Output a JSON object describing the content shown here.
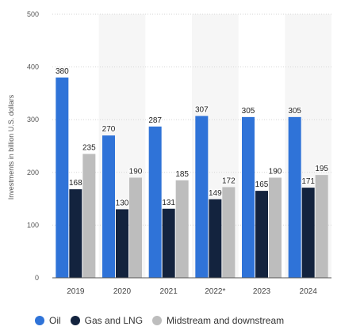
{
  "chart_data": {
    "type": "bar",
    "ylabel": "Investments in billion U.S. dollars",
    "xlabel": "",
    "ylim": [
      0,
      500
    ],
    "yticks": [
      0,
      100,
      200,
      300,
      400,
      500
    ],
    "grid": true,
    "legend_position": "bottom",
    "categories": [
      "2019",
      "2020",
      "2021",
      "2022*",
      "2023",
      "2024"
    ],
    "series": [
      {
        "name": "Oil",
        "color": "#2f73d8",
        "values": [
          380,
          270,
          287,
          307,
          305,
          305
        ]
      },
      {
        "name": "Gas and LNG",
        "color": "#13233e",
        "values": [
          168,
          130,
          131,
          149,
          165,
          171
        ]
      },
      {
        "name": "Midstream and downstream",
        "color": "#bdbdbd",
        "values": [
          235,
          190,
          185,
          172,
          190,
          195
        ]
      }
    ]
  }
}
